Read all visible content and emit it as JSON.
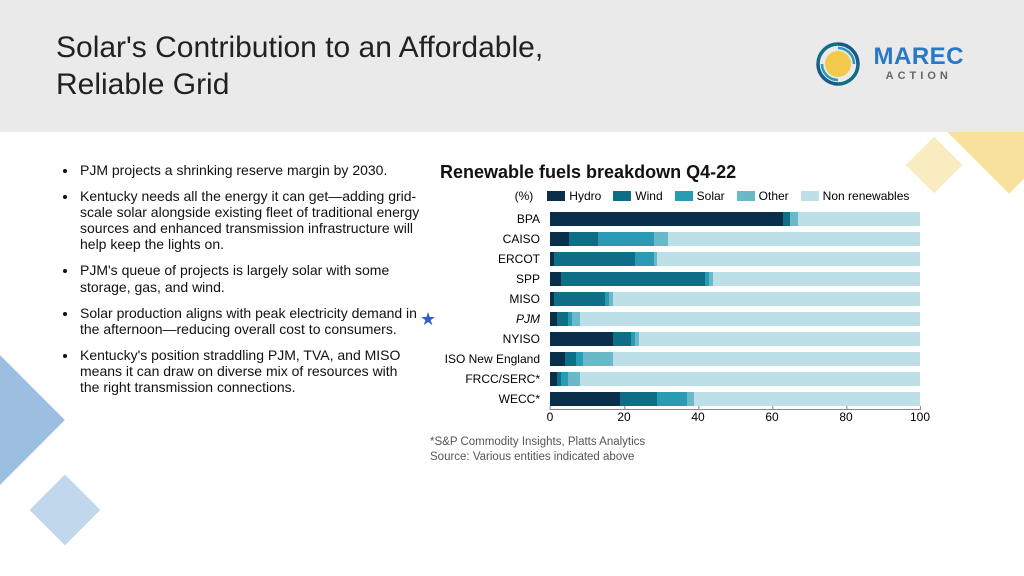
{
  "title": "Solar's Contribution to an Affordable, Reliable Grid",
  "brand": {
    "name": "MAREC",
    "sub": "ACTION",
    "color": "#2878c8"
  },
  "bullets": [
    "PJM projects a shrinking reserve margin by 2030.",
    "Kentucky needs all the energy it can get—adding grid-scale solar alongside existing fleet of traditional energy sources and enhanced transmission infrastructure will help keep the lights on.",
    "PJM's queue of projects is largely solar with some storage, gas, and wind.",
    "Solar production aligns with peak electricity demand in the afternoon—reducing overall cost to consumers.",
    "Kentucky's position straddling PJM, TVA, and MISO means it can draw on diverse mix of resources with the right transmission connections."
  ],
  "chart": {
    "title": "Renewable fuels breakdown Q4-22",
    "unit_label": "(%)",
    "legend": [
      {
        "label": "Hydro",
        "color": "#0a2f4a"
      },
      {
        "label": "Wind",
        "color": "#0e6e85"
      },
      {
        "label": "Solar",
        "color": "#2a9bb5"
      },
      {
        "label": "Other",
        "color": "#6bb8c9"
      },
      {
        "label": "Non renewables",
        "color": "#bcdfe8"
      }
    ],
    "categories": [
      "BPA",
      "CAISO",
      "ERCOT",
      "SPP",
      "MISO",
      "PJM",
      "NYISO",
      "ISO New England",
      "FRCC/SERC*",
      "WECC*"
    ],
    "highlight_index": 5,
    "series": [
      [
        63,
        2,
        0,
        2,
        33
      ],
      [
        5,
        8,
        15,
        4,
        68
      ],
      [
        1,
        22,
        5,
        1,
        71
      ],
      [
        3,
        39,
        1,
        1,
        56
      ],
      [
        1,
        14,
        1,
        1,
        83
      ],
      [
        2,
        3,
        1,
        2,
        92
      ],
      [
        17,
        5,
        1,
        1,
        76
      ],
      [
        4,
        3,
        2,
        8,
        83
      ],
      [
        2,
        1,
        2,
        3,
        92
      ],
      [
        19,
        10,
        8,
        2,
        61
      ]
    ],
    "xticks": [
      0,
      20,
      40,
      60,
      80,
      100
    ],
    "footnote1": "*S&P Commodity Insights, Platts Analytics",
    "footnote2": "Source: Various entities indicated above"
  }
}
